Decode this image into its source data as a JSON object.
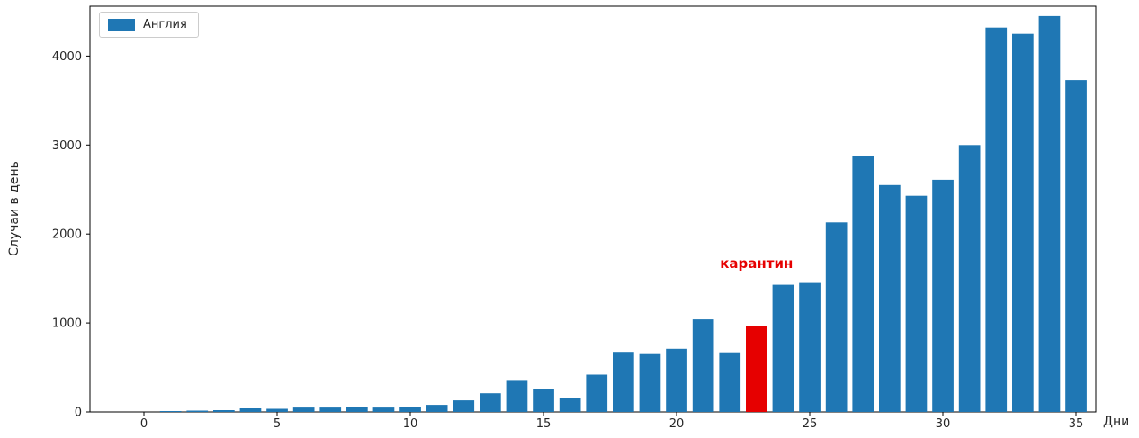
{
  "chart_data": {
    "type": "bar",
    "title": "",
    "xlabel": "Дни",
    "ylabel": "Случаи в день",
    "grid": false,
    "legend_position": "upper left",
    "series": [
      {
        "name": "Англия",
        "color": "#1f77b4"
      }
    ],
    "x": [
      1,
      2,
      3,
      4,
      5,
      6,
      7,
      8,
      9,
      10,
      11,
      12,
      13,
      14,
      15,
      16,
      17,
      18,
      19,
      20,
      21,
      22,
      23,
      24,
      25,
      26,
      27,
      28,
      29,
      30,
      31,
      32,
      33,
      34,
      35
    ],
    "values": [
      10,
      15,
      20,
      40,
      35,
      50,
      50,
      60,
      50,
      55,
      80,
      130,
      210,
      350,
      260,
      160,
      420,
      675,
      650,
      710,
      1040,
      670,
      970,
      1430,
      1450,
      2130,
      2880,
      2550,
      2430,
      2610,
      3000,
      4320,
      4250,
      4450,
      3730
    ],
    "highlight": {
      "day": 23,
      "color": "#e60000"
    },
    "annotation": {
      "text": "карантин",
      "color": "#e60000",
      "day": 23
    },
    "xticks": [
      0,
      5,
      10,
      15,
      20,
      25,
      30,
      35
    ],
    "yticks": [
      0,
      1000,
      2000,
      3000,
      4000
    ],
    "xlim": [
      -2,
      35.8
    ],
    "ylim": [
      0,
      4560
    ]
  }
}
